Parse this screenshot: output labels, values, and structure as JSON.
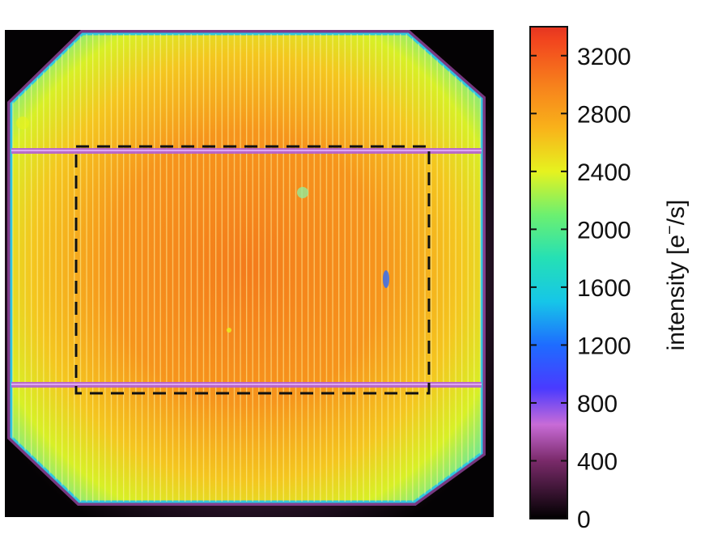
{
  "chart_data": {
    "type": "heatmap",
    "title": "",
    "colorbar": {
      "label_main": "intensity [e",
      "label_sup": "−",
      "label_end": "/s]",
      "min": 0,
      "max": 3400,
      "ticks": [
        0,
        400,
        800,
        1200,
        1600,
        2000,
        2400,
        2800,
        3200
      ],
      "colormap": [
        {
          "value": 0,
          "color": "#000000"
        },
        {
          "value": 400,
          "color": "#7a2a6a"
        },
        {
          "value": 650,
          "color": "#c86bd7"
        },
        {
          "value": 900,
          "color": "#4a3aff"
        },
        {
          "value": 1200,
          "color": "#1e6cff"
        },
        {
          "value": 1500,
          "color": "#16c6e8"
        },
        {
          "value": 1800,
          "color": "#25e0b5"
        },
        {
          "value": 2100,
          "color": "#6cf070"
        },
        {
          "value": 2400,
          "color": "#e6f21f"
        },
        {
          "value": 2700,
          "color": "#f9b21a"
        },
        {
          "value": 3000,
          "color": "#f7801c"
        },
        {
          "value": 3300,
          "color": "#f2461e"
        },
        {
          "value": 3400,
          "color": "#e53421"
        }
      ]
    },
    "cell": {
      "shape": "square solar cell with chamfered corners",
      "typical_intensity": 3000,
      "edge_intensity": 1600,
      "background_intensity": 0,
      "busbars": 2,
      "busbar_intensity": 700,
      "finger_lines": "vertical",
      "selection": "dashed rectangle (central region)"
    }
  }
}
